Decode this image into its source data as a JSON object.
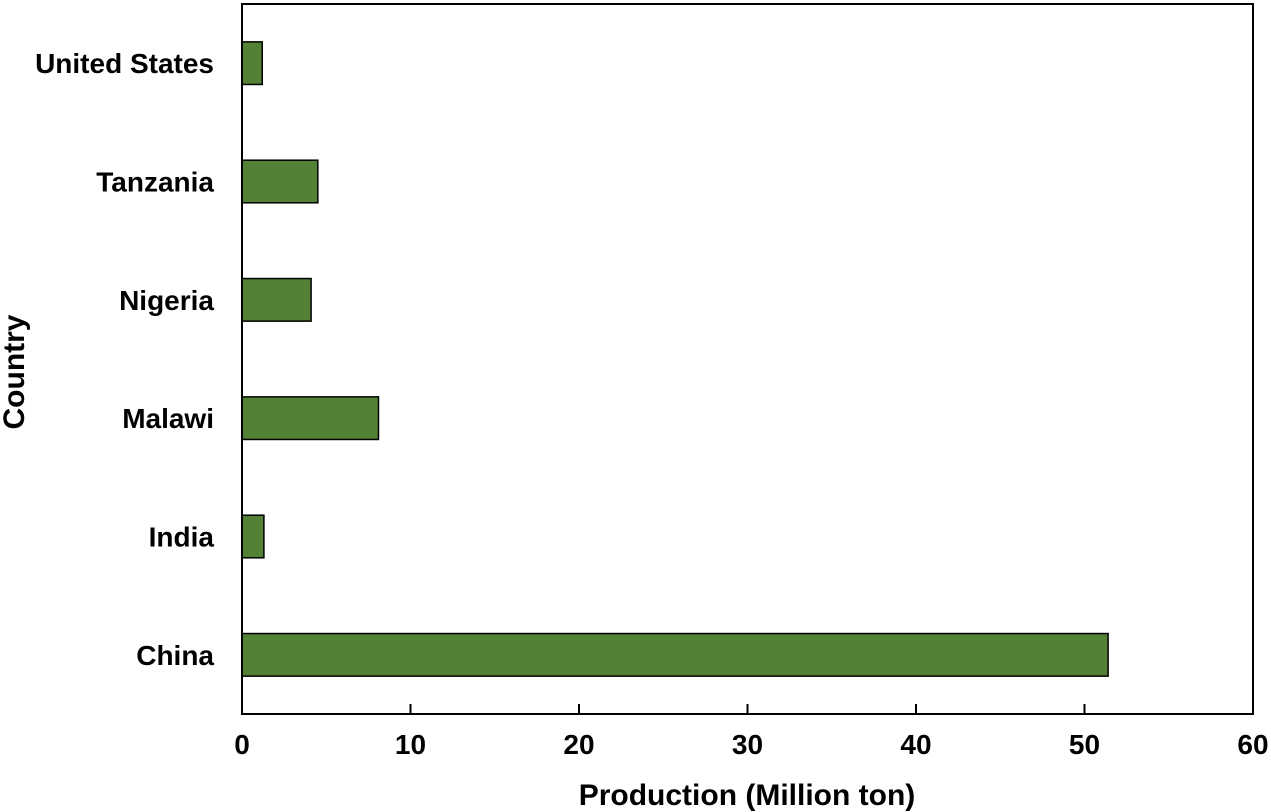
{
  "chart_data": {
    "type": "bar",
    "orientation": "horizontal",
    "categories": [
      "United States",
      "Tanzania",
      "Nigeria",
      "Malawi",
      "India",
      "China"
    ],
    "values": [
      1.2,
      4.5,
      4.1,
      8.1,
      1.3,
      51.4
    ],
    "xlabel": "Production (Million ton)",
    "ylabel": "Country",
    "xlim": [
      0,
      60
    ],
    "xticks": [
      "0",
      "10",
      "20",
      "30",
      "40",
      "50",
      "60"
    ],
    "grid": false,
    "legend": "none",
    "bar_color": "#538135",
    "bar_edge_color": "#000000"
  }
}
